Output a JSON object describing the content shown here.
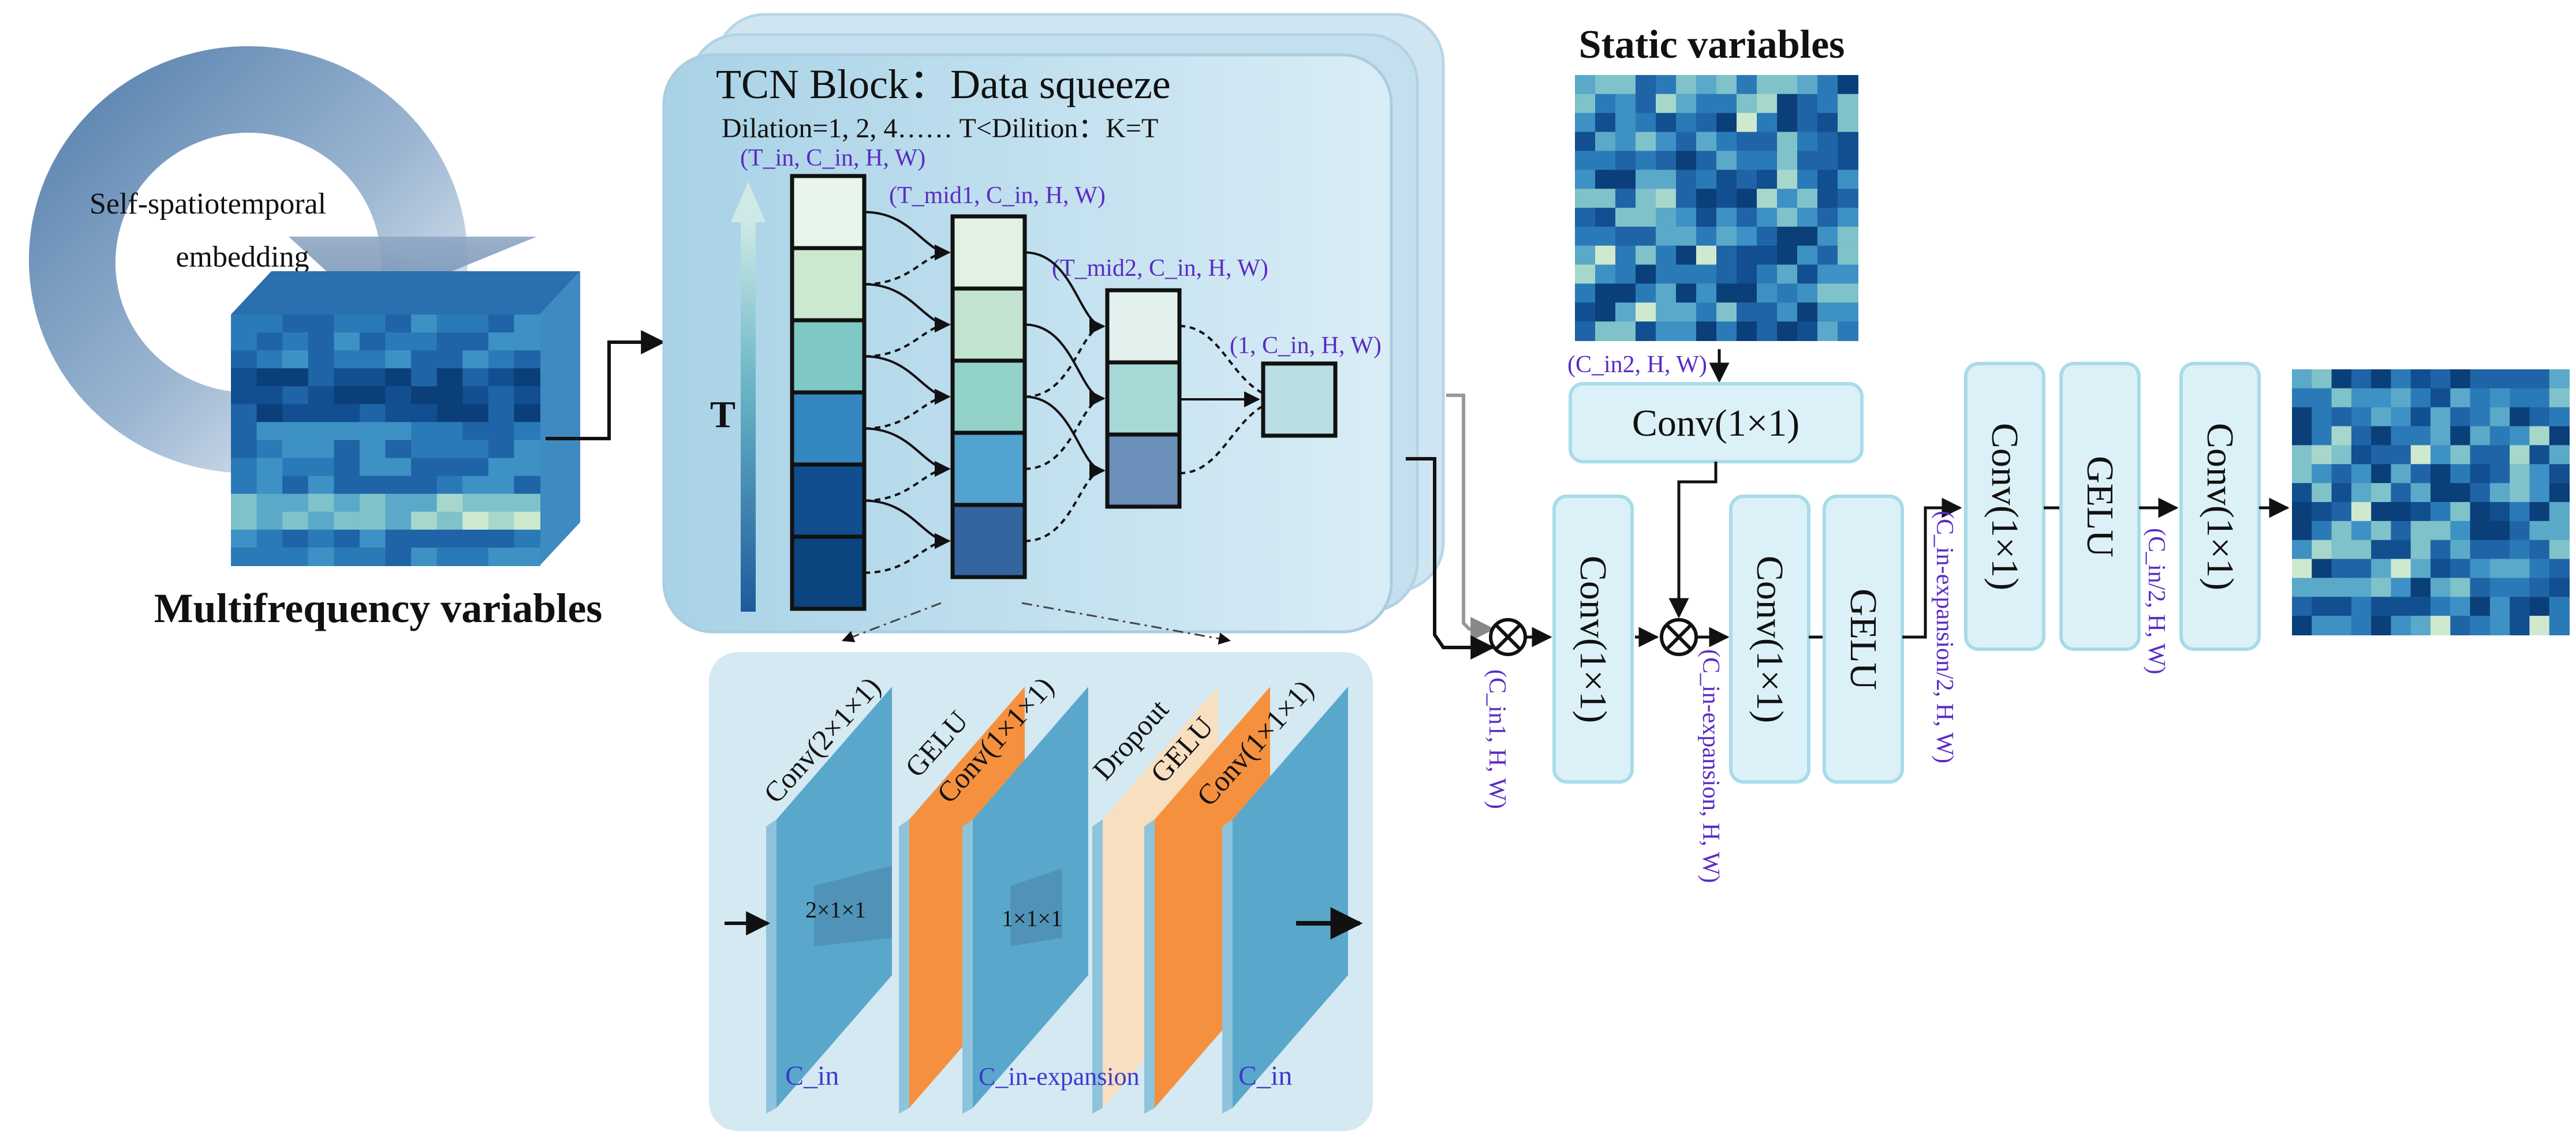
{
  "left": {
    "embedding_label_line1": "Self-spatiotemporal",
    "embedding_label_line2": "embedding",
    "multifreq_label": "Multifrequency variables"
  },
  "tcn": {
    "title": "TCN Block：Data squeeze",
    "dilation_text": "Dilation=1, 2, 4…… T<Dilition：K=T",
    "t_axis_label": "T",
    "dim_in": "(T_in, C_in, H, W)",
    "dim_mid1": "(T_mid1, C_in, H, W)",
    "dim_mid2": "(T_mid2, C_in, H, W)",
    "dim_out": "(1, C_in, H, W)",
    "col1_colors": [
      "#e8f5ea",
      "#cce9cf",
      "#7ec8c5",
      "#3587c0",
      "#104e8e",
      "#0c4480"
    ],
    "col2_colors": [
      "#e1f1e4",
      "#c2e3cf",
      "#92d1c7",
      "#52a3cf",
      "#3565a0"
    ],
    "col3_colors": [
      "#e3f1ee",
      "#a6d8d6",
      "#6a8fb8"
    ],
    "out_color": "#b9dfe3"
  },
  "detail": {
    "conv1_label": "Conv(2×1×1)",
    "gelu1_label": "GELU",
    "conv2_label": "Conv(1×1×1)",
    "dropout_label": "Dropout",
    "gelu2_label": "GELU",
    "conv3_label": "Conv(1×1×1)",
    "kernel1_label": "2×1×1",
    "kernel2_label": "1×1×1",
    "cin1_label": "C_in",
    "cexp_label": "C_in-expansion",
    "cin2_label": "C_in",
    "blue_color": "#5aa7cc",
    "orange_color": "#f5913e",
    "cream_color": "#f7dfc0"
  },
  "right": {
    "static_label": "Static variables",
    "static_dim": "(C_in2, H, W)",
    "conv_static": "Conv(1×1)",
    "conv_a": "Conv(1×1)",
    "dim_a": "(C_in1, H, W)",
    "dim_exp": "(C_in-expansion, H, W)",
    "conv_b": "Conv(1×1)",
    "gelu_b": "GELU",
    "dim_half": "(C_in-expansion/2, H, W)",
    "conv_c": "Conv(1×1)",
    "gelu_c": "GELU",
    "dim_quarter": "(C_in/2, H, W)",
    "conv_d": "Conv(1×1)",
    "block_fill": "#dcf1f7",
    "block_stroke": "#a9dbe9"
  }
}
